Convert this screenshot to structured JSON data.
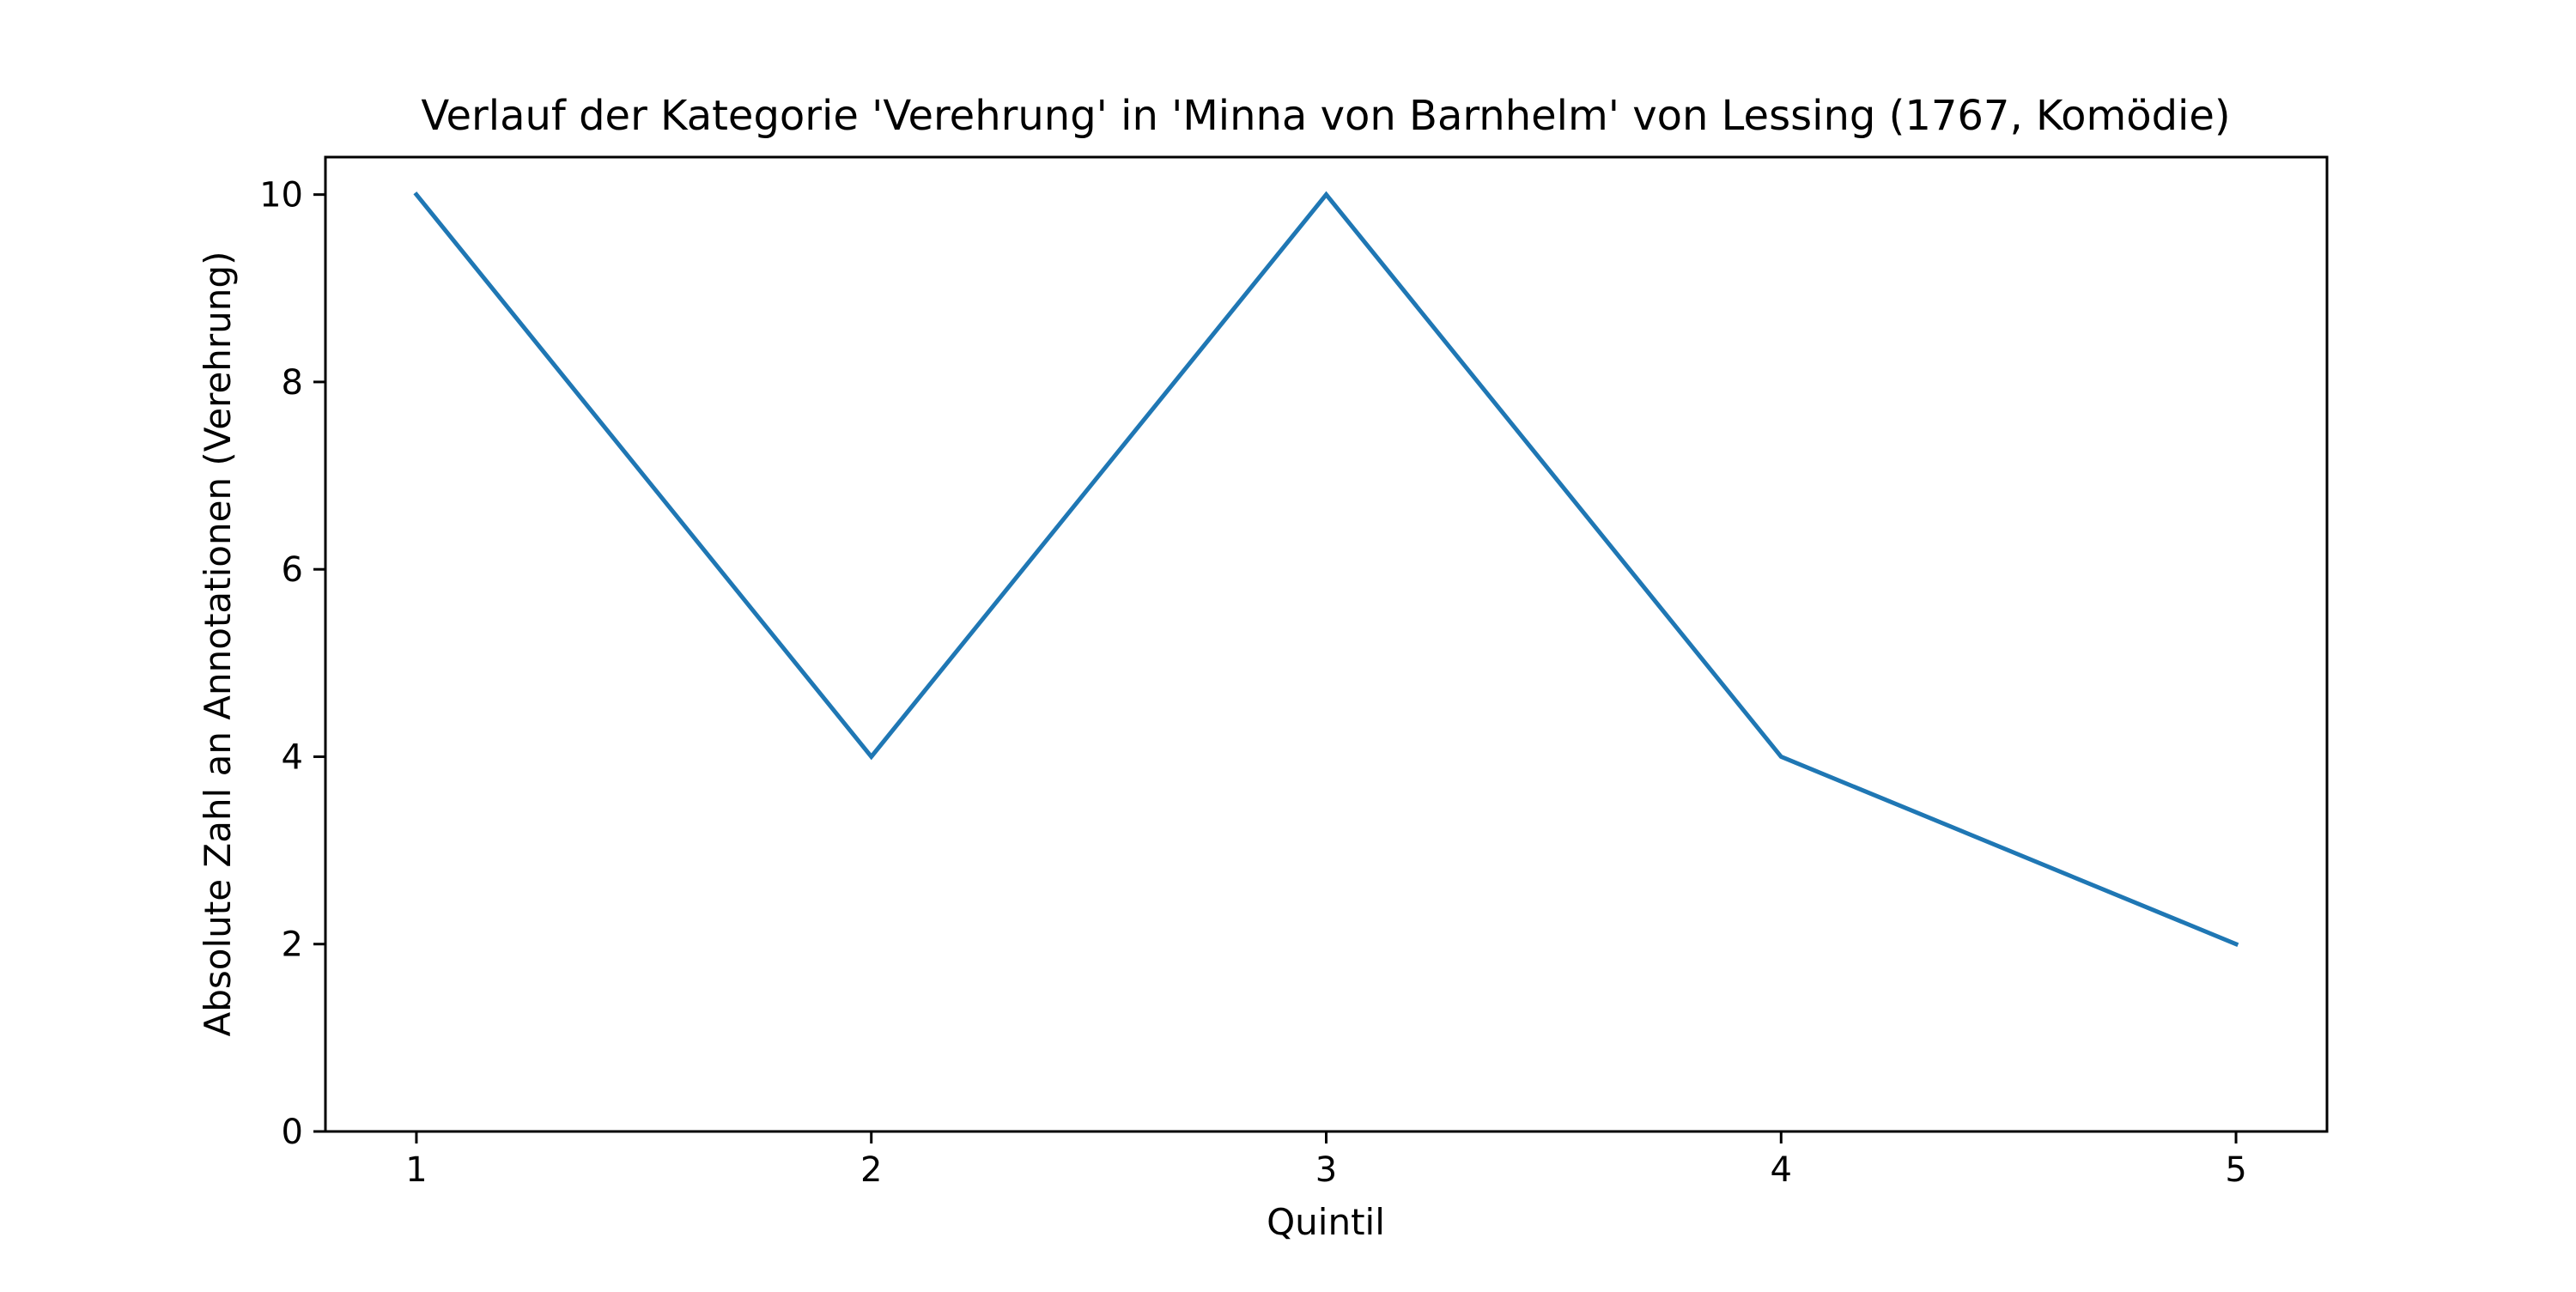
{
  "chart_data": {
    "type": "line",
    "title": "Verlauf der Kategorie 'Verehrung' in 'Minna von Barnhelm' von Lessing (1767, Komödie)",
    "xlabel": "Quintil",
    "ylabel": "Absolute Zahl an Annotationen (Verehrung)",
    "x": [
      1,
      2,
      3,
      4,
      5
    ],
    "series": [
      {
        "values": [
          10,
          4,
          10,
          4,
          2
        ]
      }
    ],
    "xlim": [
      0.8,
      5.2
    ],
    "ylim": [
      0,
      10.4
    ],
    "xticks": [
      "1",
      "2",
      "3",
      "4",
      "5"
    ],
    "yticks": [
      "0",
      "2",
      "4",
      "6",
      "8",
      "10"
    ],
    "grid": false,
    "line_color": "#1f77b4"
  }
}
